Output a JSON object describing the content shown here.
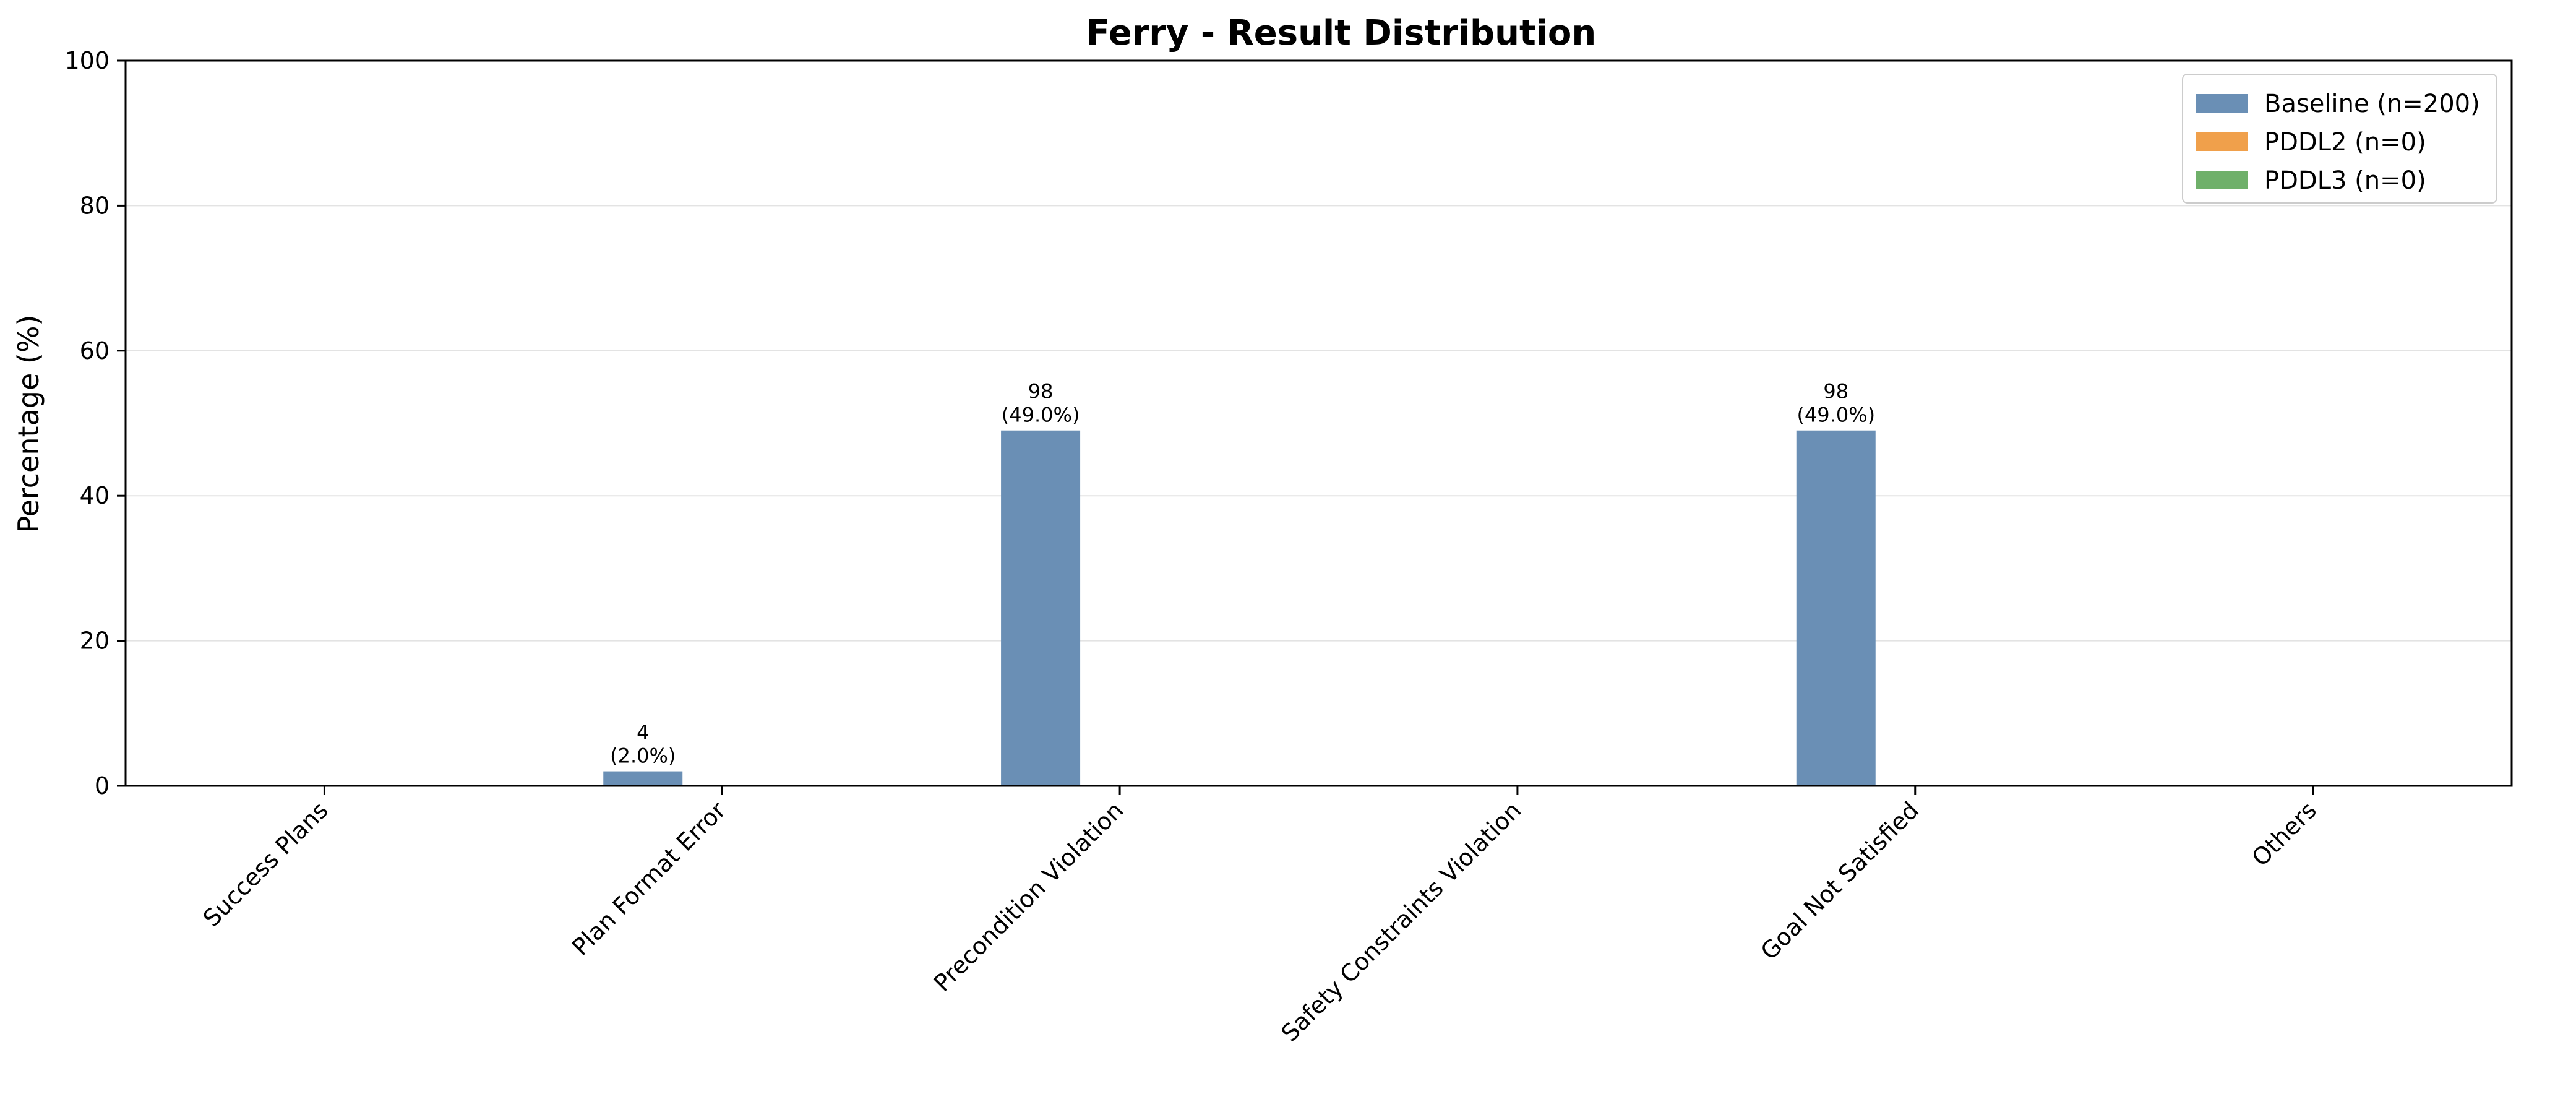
{
  "chart_data": {
    "type": "bar",
    "title": "Ferry - Result Distribution",
    "xlabel": "",
    "ylabel": "Percentage (%)",
    "ylim": [
      0,
      100
    ],
    "yticks": [
      0,
      20,
      40,
      60,
      80,
      100
    ],
    "grid": true,
    "legend_position": "top-right",
    "categories": [
      "Success Plans",
      "Plan Format Error",
      "Precondition Violation",
      "Safety Constraints Violation",
      "Goal Not Satisfied",
      "Others"
    ],
    "series": [
      {
        "name": "Baseline (n=200)",
        "color": "#6a8fb5",
        "values": [
          0,
          2.0,
          49.0,
          0,
          49.0,
          0
        ],
        "data_labels": [
          [
            "",
            ""
          ],
          [
            "4",
            "(2.0%)"
          ],
          [
            "98",
            "(49.0%)"
          ],
          [
            "",
            ""
          ],
          [
            "98",
            "(49.0%)"
          ],
          [
            "",
            ""
          ]
        ]
      },
      {
        "name": "PDDL2 (n=0)",
        "color": "#f0a04b",
        "values": [
          0,
          0,
          0,
          0,
          0,
          0
        ]
      },
      {
        "name": "PDDL3 (n=0)",
        "color": "#6fb06a",
        "values": [
          0,
          0,
          0,
          0,
          0,
          0
        ]
      }
    ]
  }
}
